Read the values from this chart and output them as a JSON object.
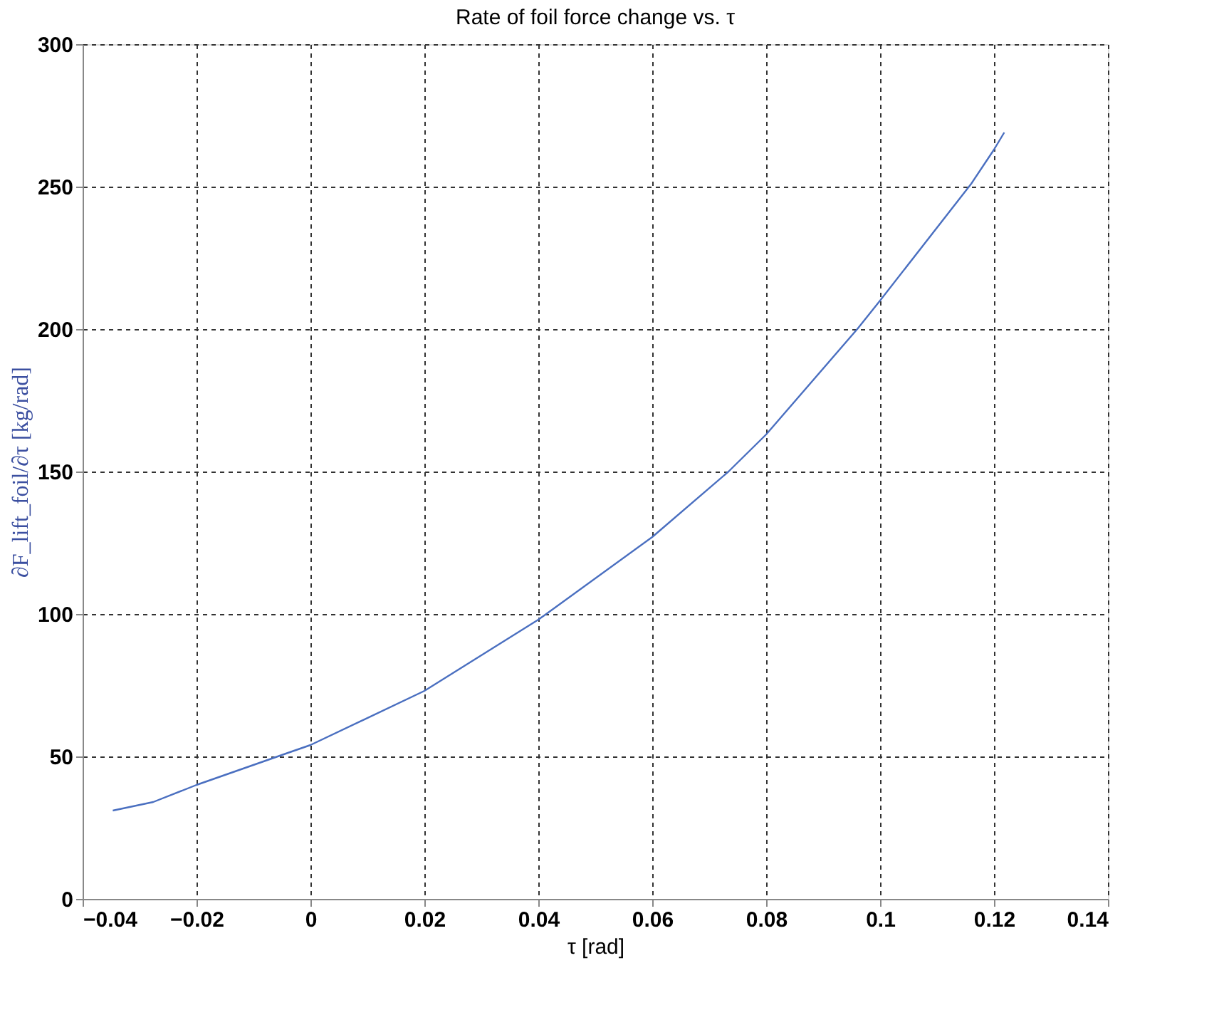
{
  "chart_data": {
    "type": "line",
    "title": "Rate of foil force change vs. τ",
    "xlabel": "τ [rad]",
    "ylabel": "∂F_lift_foil/∂τ [kg/rad]",
    "x": [
      -0.0347,
      -0.0276,
      -0.02,
      -0.0036,
      0,
      0.02,
      0.04,
      0.06,
      0.0734,
      0.08,
      0.096,
      0.1,
      0.116,
      0.12,
      0.1218
    ],
    "series": [
      {
        "color": "#4a6fc0",
        "values": [
          31,
          34,
          40,
          51.5,
          54,
          73,
          98,
          127,
          150,
          163,
          200,
          210,
          251,
          263,
          269
        ]
      }
    ],
    "xlim": [
      -0.04,
      0.14
    ],
    "xticks": [
      -0.04,
      -0.02,
      0,
      0.02,
      0.04,
      0.06,
      0.08,
      0.1,
      0.12,
      0.14
    ],
    "ylim": [
      0,
      300
    ],
    "yticks": [
      0,
      50,
      100,
      150,
      200,
      250,
      300
    ],
    "grid": true,
    "legend": false,
    "marker": "none",
    "line_style": "solid"
  }
}
